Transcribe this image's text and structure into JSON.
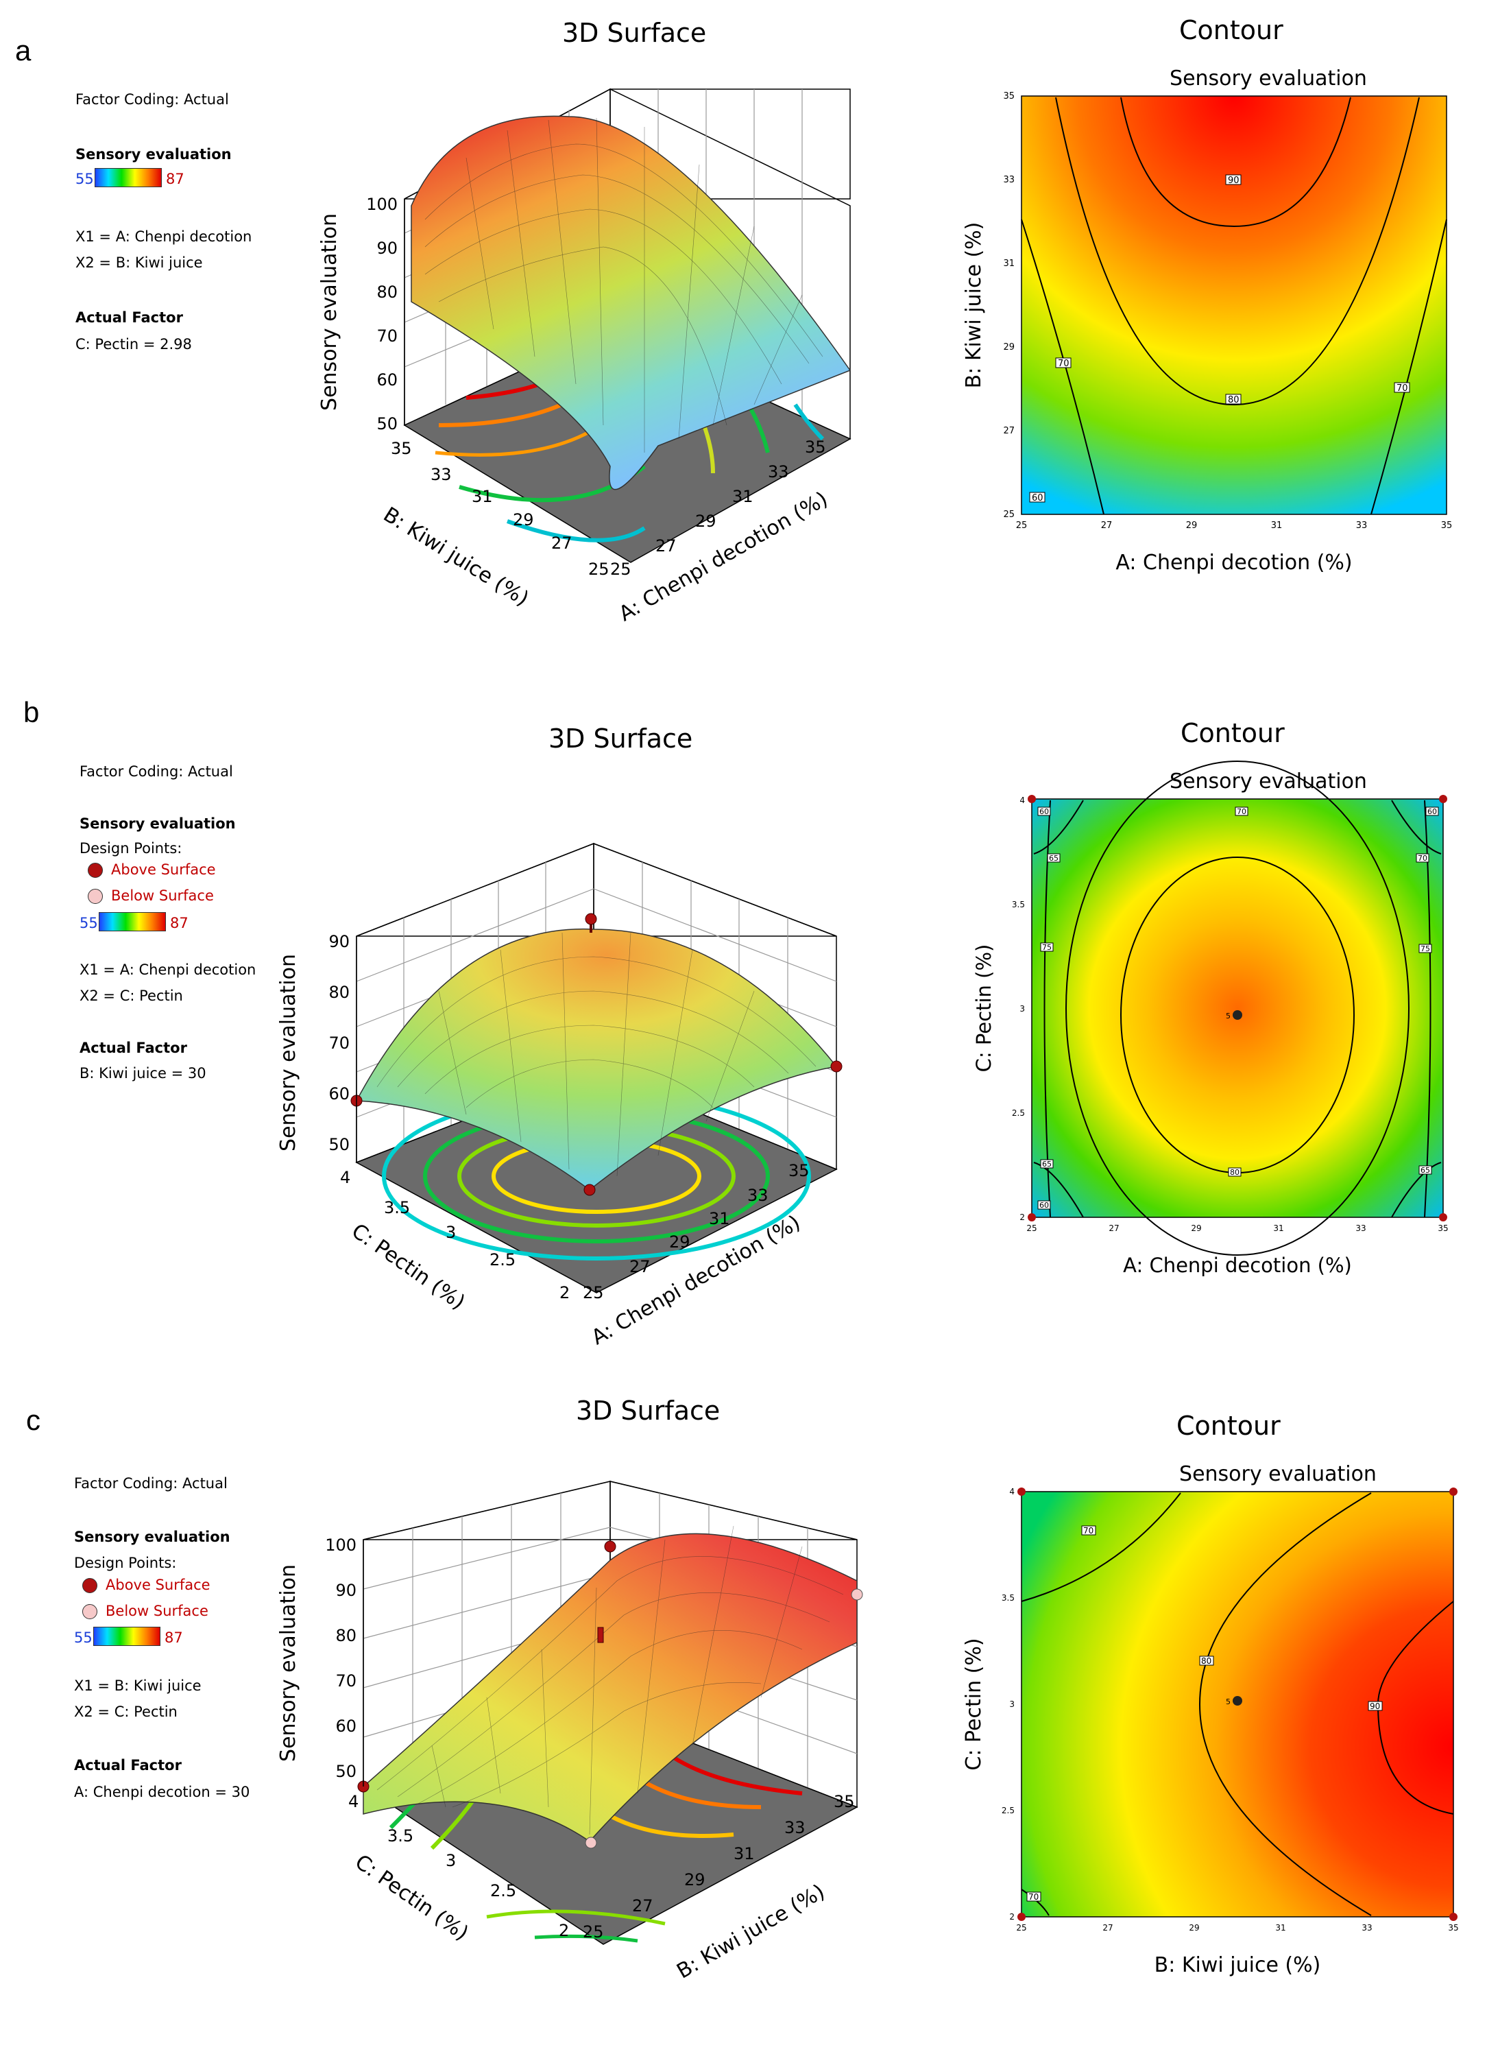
{
  "chart_data": [
    {
      "panel": "a",
      "type": "surface3d",
      "title": "3D Surface",
      "legend": {
        "coding": "Factor Coding: Actual",
        "response": "Sensory evaluation",
        "range": [
          55,
          87
        ],
        "x1": "X1 = A: Chenpi decotion",
        "x2": "X2 = B: Kiwi juice",
        "actual_factor_title": "Actual Factor",
        "actual_factor": "C: Pectin  = 2.98"
      },
      "zlabel": "Sensory evaluation",
      "zticks": [
        "100",
        "90",
        "80",
        "70",
        "60",
        "50"
      ],
      "xlabel": "A: Chenpi decotion  (%)",
      "xticks": [
        "25",
        "27",
        "29",
        "31",
        "33",
        "35"
      ],
      "ylabel": "B: Kiwi juice  (%)",
      "yticks": [
        "25",
        "27",
        "29",
        "31",
        "33",
        "35"
      ],
      "contour": {
        "title": "Contour",
        "subtitle": "Sensory evaluation",
        "xlabel": "A: Chenpi decotion  (%)",
        "ylabel": "B: Kiwi juice  (%)",
        "xticks": [
          "25",
          "27",
          "29",
          "31",
          "33",
          "35"
        ],
        "yticks": [
          "25",
          "27",
          "29",
          "31",
          "33",
          "35"
        ],
        "levels": [
          "90",
          "80",
          "70",
          "70",
          "60"
        ]
      }
    },
    {
      "panel": "b",
      "type": "surface3d",
      "title": "3D Surface",
      "legend": {
        "coding": "Factor Coding: Actual",
        "response": "Sensory evaluation",
        "design_points": "Design Points:",
        "above": "Above Surface",
        "below": "Below Surface",
        "range": [
          55,
          87
        ],
        "x1": "X1 = A: Chenpi decotion",
        "x2": "X2 = C: Pectin",
        "actual_factor_title": "Actual Factor",
        "actual_factor": "B: Kiwi juice  = 30"
      },
      "zlabel": "Sensory evaluation",
      "zticks": [
        "90",
        "80",
        "70",
        "60",
        "50"
      ],
      "xlabel": "A: Chenpi decotion  (%)",
      "xticks": [
        "25",
        "27",
        "29",
        "31",
        "33",
        "35"
      ],
      "ylabel": "C: Pectin  (%)",
      "yticks": [
        "2",
        "2.5",
        "3",
        "3.5",
        "4"
      ],
      "contour": {
        "title": "Contour",
        "subtitle": "Sensory evaluation",
        "xlabel": "A: Chenpi decotion  (%)",
        "ylabel": "C: Pectin  (%)",
        "xticks": [
          "25",
          "27",
          "29",
          "31",
          "33",
          "35"
        ],
        "yticks": [
          "2",
          "2.5",
          "3",
          "3.5",
          "4"
        ],
        "levels": [
          "60",
          "65",
          "70",
          "75",
          "80",
          "75",
          "70",
          "65",
          "60",
          "60",
          "65",
          "75",
          "65",
          "60"
        ],
        "center_label": "5"
      }
    },
    {
      "panel": "c",
      "type": "surface3d",
      "title": "3D Surface",
      "legend": {
        "coding": "Factor Coding: Actual",
        "response": "Sensory evaluation",
        "design_points": "Design Points:",
        "above": "Above Surface",
        "below": "Below Surface",
        "range": [
          55,
          87
        ],
        "x1": "X1 = B: Kiwi juice",
        "x2": "X2 = C: Pectin",
        "actual_factor_title": "Actual Factor",
        "actual_factor": "A: Chenpi decotion  = 30"
      },
      "zlabel": "Sensory evaluation",
      "zticks": [
        "100",
        "90",
        "80",
        "70",
        "60",
        "50"
      ],
      "xlabel": "B: Kiwi juice  (%)",
      "xticks": [
        "25",
        "27",
        "29",
        "31",
        "33",
        "35"
      ],
      "ylabel": "C: Pectin  (%)",
      "yticks": [
        "2",
        "2.5",
        "3",
        "3.5",
        "4"
      ],
      "contour": {
        "title": "Contour",
        "subtitle": "Sensory evaluation",
        "xlabel": "B: Kiwi juice  (%)",
        "ylabel": "C: Pectin  (%)",
        "xticks": [
          "25",
          "27",
          "29",
          "31",
          "33",
          "35"
        ],
        "yticks": [
          "2",
          "2.5",
          "3",
          "3.5",
          "4"
        ],
        "levels": [
          "70",
          "80",
          "90",
          "70"
        ],
        "center_label": "5"
      }
    }
  ],
  "panel_labels": [
    "a",
    "b",
    "c"
  ],
  "colors": {
    "above": "#b01010",
    "below": "#f6c9c9",
    "high": "#c00000",
    "low": "#1b3fd8"
  }
}
